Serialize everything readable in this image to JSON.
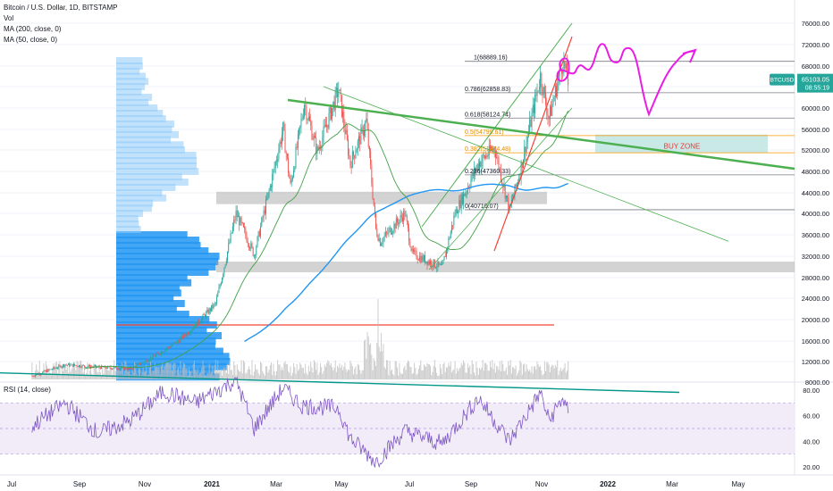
{
  "header": {
    "symbol_title": "Bitcoin / U.S. Dollar, 1D, BITSTAMP",
    "volume_label": "Vol",
    "ma_200_label": "MA (200, close, 0)",
    "ma_50_label": "MA (50, close, 0)",
    "rsi_label": "RSI (14, close)"
  },
  "colors": {
    "up_candle": "#26a69a",
    "down_candle": "#ef5350",
    "ma200": "#2196f3",
    "ma50": "#43a047",
    "trend_green": "#4caf50",
    "trend_red": "#f44336",
    "drawing_magenta": "#e91ee3",
    "buy_zone": "#b2dfdb",
    "rsi_line": "#7e57c2",
    "rsi_band": "#ede7f6",
    "price_badge": "#26a69a"
  },
  "price_badge": {
    "ticker": "BTCUSD",
    "price": "65103.05",
    "countdown": "08:55:19"
  },
  "chart_data": [
    {
      "type": "line",
      "title": "Bitcoin / U.S. Dollar, 1D, BITSTAMP",
      "xlabel": "",
      "ylabel": "",
      "x_ticks": [
        "Jul",
        "Sep",
        "Nov",
        "2021",
        "Mar",
        "May",
        "Jul",
        "Sep",
        "Nov",
        "2022",
        "Mar",
        "May"
      ],
      "y_ticks": [
        "8000.00",
        "12000.00",
        "16000.00",
        "20000.00",
        "24000.00",
        "28000.00",
        "32000.00",
        "36000.00",
        "40000.00",
        "44000.00",
        "48000.00",
        "52000.00",
        "56000.00",
        "60000.00",
        "64000.00",
        "68000.00",
        "72000.00",
        "76000.00"
      ],
      "ylim": [
        6000,
        76000
      ],
      "series": [
        {
          "name": "BTCUSD",
          "points": [
            [
              "2020-07-01",
              9200
            ],
            [
              "2020-08-01",
              11400
            ],
            [
              "2020-09-01",
              10900
            ],
            [
              "2020-10-01",
              10600
            ],
            [
              "2020-10-25",
              13200
            ],
            [
              "2020-11-15",
              16000
            ],
            [
              "2020-12-01",
              18900
            ],
            [
              "2020-12-20",
              23000
            ],
            [
              "2021-01-08",
              40000
            ],
            [
              "2021-01-25",
              32300
            ],
            [
              "2021-02-10",
              46000
            ],
            [
              "2021-02-21",
              56000
            ],
            [
              "2021-02-28",
              45200
            ],
            [
              "2021-03-13",
              61000
            ],
            [
              "2021-03-25",
              51700
            ],
            [
              "2021-04-14",
              63500
            ],
            [
              "2021-04-25",
              49500
            ],
            [
              "2021-05-10",
              57500
            ],
            [
              "2021-05-19",
              37000
            ],
            [
              "2021-05-23",
              34700
            ],
            [
              "2021-06-15",
              40000
            ],
            [
              "2021-06-22",
              32500
            ],
            [
              "2021-07-20",
              29800
            ],
            [
              "2021-08-01",
              40000
            ],
            [
              "2021-08-23",
              49500
            ],
            [
              "2021-09-07",
              52500
            ],
            [
              "2021-09-21",
              40700
            ],
            [
              "2021-10-01",
              48000
            ],
            [
              "2021-10-20",
              66000
            ],
            [
              "2021-10-28",
              58000
            ],
            [
              "2021-11-10",
              68889
            ],
            [
              "2021-11-15",
              65103
            ]
          ]
        }
      ],
      "fibonacci_levels": [
        {
          "ratio": "1",
          "price": "68889.16",
          "label": "1(68889.16)"
        },
        {
          "ratio": "0.786",
          "price": "62858.83",
          "label": "0.786(62858.83)"
        },
        {
          "ratio": "0.618",
          "price": "58124.74",
          "label": "0.618(58124.74)"
        },
        {
          "ratio": "0.5",
          "price": "54799.61",
          "label": "0.5(54799.61)"
        },
        {
          "ratio": "0.382",
          "price": "51474.48",
          "label": "0.382(51474.48)"
        },
        {
          "ratio": "0.236",
          "price": "47360.33",
          "label": "0.236(47360.33)"
        },
        {
          "ratio": "0",
          "price": "40710.07",
          "label": "0(40710.07)"
        }
      ],
      "annotations": [
        {
          "text": "BUY ZONE",
          "price_range": [
            51500,
            55000
          ]
        }
      ]
    },
    {
      "type": "line",
      "title": "RSI (14, close)",
      "y_ticks": [
        "20.00",
        "40.00",
        "60.00",
        "80.00"
      ],
      "ylim": [
        15,
        85
      ],
      "band": [
        30,
        70
      ],
      "series": [
        {
          "name": "RSI",
          "points": [
            [
              "2020-07-01",
              52
            ],
            [
              "2020-08-01",
              70
            ],
            [
              "2020-09-01",
              46
            ],
            [
              "2020-10-01",
              56
            ],
            [
              "2020-11-01",
              79
            ],
            [
              "2020-12-01",
              70
            ],
            [
              "2021-01-08",
              88
            ],
            [
              "2021-01-25",
              50
            ],
            [
              "2021-02-21",
              82
            ],
            [
              "2021-03-10",
              68
            ],
            [
              "2021-04-14",
              66
            ],
            [
              "2021-04-25",
              42
            ],
            [
              "2021-05-19",
              24
            ],
            [
              "2021-06-15",
              48
            ],
            [
              "2021-07-20",
              38
            ],
            [
              "2021-08-23",
              74
            ],
            [
              "2021-09-21",
              40
            ],
            [
              "2021-10-20",
              78
            ],
            [
              "2021-10-28",
              56
            ],
            [
              "2021-11-10",
              74
            ],
            [
              "2021-11-15",
              62
            ]
          ]
        }
      ]
    }
  ]
}
